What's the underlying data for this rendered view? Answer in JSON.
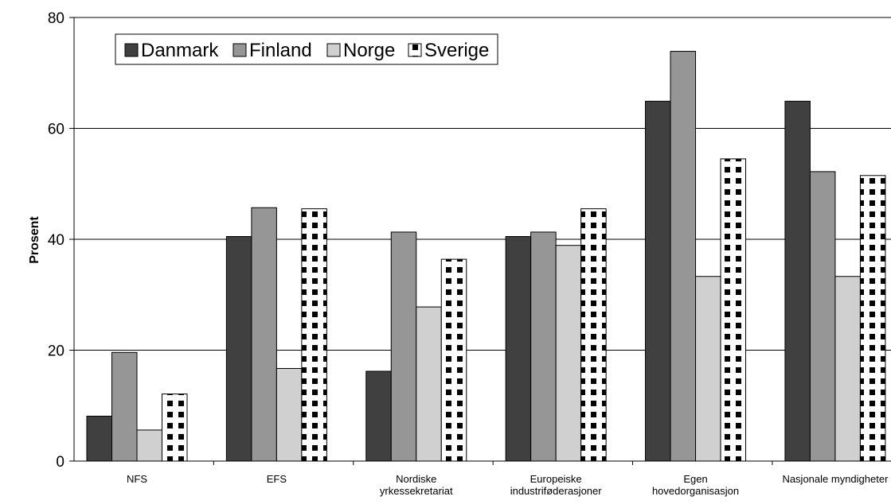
{
  "chart_data": {
    "type": "bar",
    "title": "",
    "xlabel": "",
    "ylabel": "Prosent",
    "ylim": [
      0,
      80
    ],
    "yticks": [
      0,
      20,
      40,
      60,
      80
    ],
    "grid": true,
    "legend_position": "top-left",
    "categories": [
      [
        "NFS"
      ],
      [
        "EFS"
      ],
      [
        "Nordiske",
        "yrkessekretariat"
      ],
      [
        "Europeiske",
        "industriføderasjoner"
      ],
      [
        "Egen",
        "hovedorganisasjon"
      ],
      [
        "Nasjonale myndigheter"
      ]
    ],
    "series": [
      {
        "name": "Danmark",
        "color": "#404040",
        "pattern": "solid",
        "values": [
          8.1,
          40.5,
          16.2,
          40.5,
          64.9,
          64.9
        ]
      },
      {
        "name": "Finland",
        "color": "#969696",
        "pattern": "solid",
        "values": [
          19.6,
          45.7,
          41.3,
          41.3,
          73.9,
          52.2
        ]
      },
      {
        "name": "Norge",
        "color": "#d0d0d0",
        "pattern": "solid",
        "values": [
          5.6,
          16.7,
          27.8,
          38.9,
          33.3,
          33.3
        ]
      },
      {
        "name": "Sverige",
        "color": "#000000",
        "pattern": "checker",
        "values": [
          12.1,
          45.5,
          36.4,
          45.5,
          54.5,
          51.5
        ]
      }
    ]
  }
}
